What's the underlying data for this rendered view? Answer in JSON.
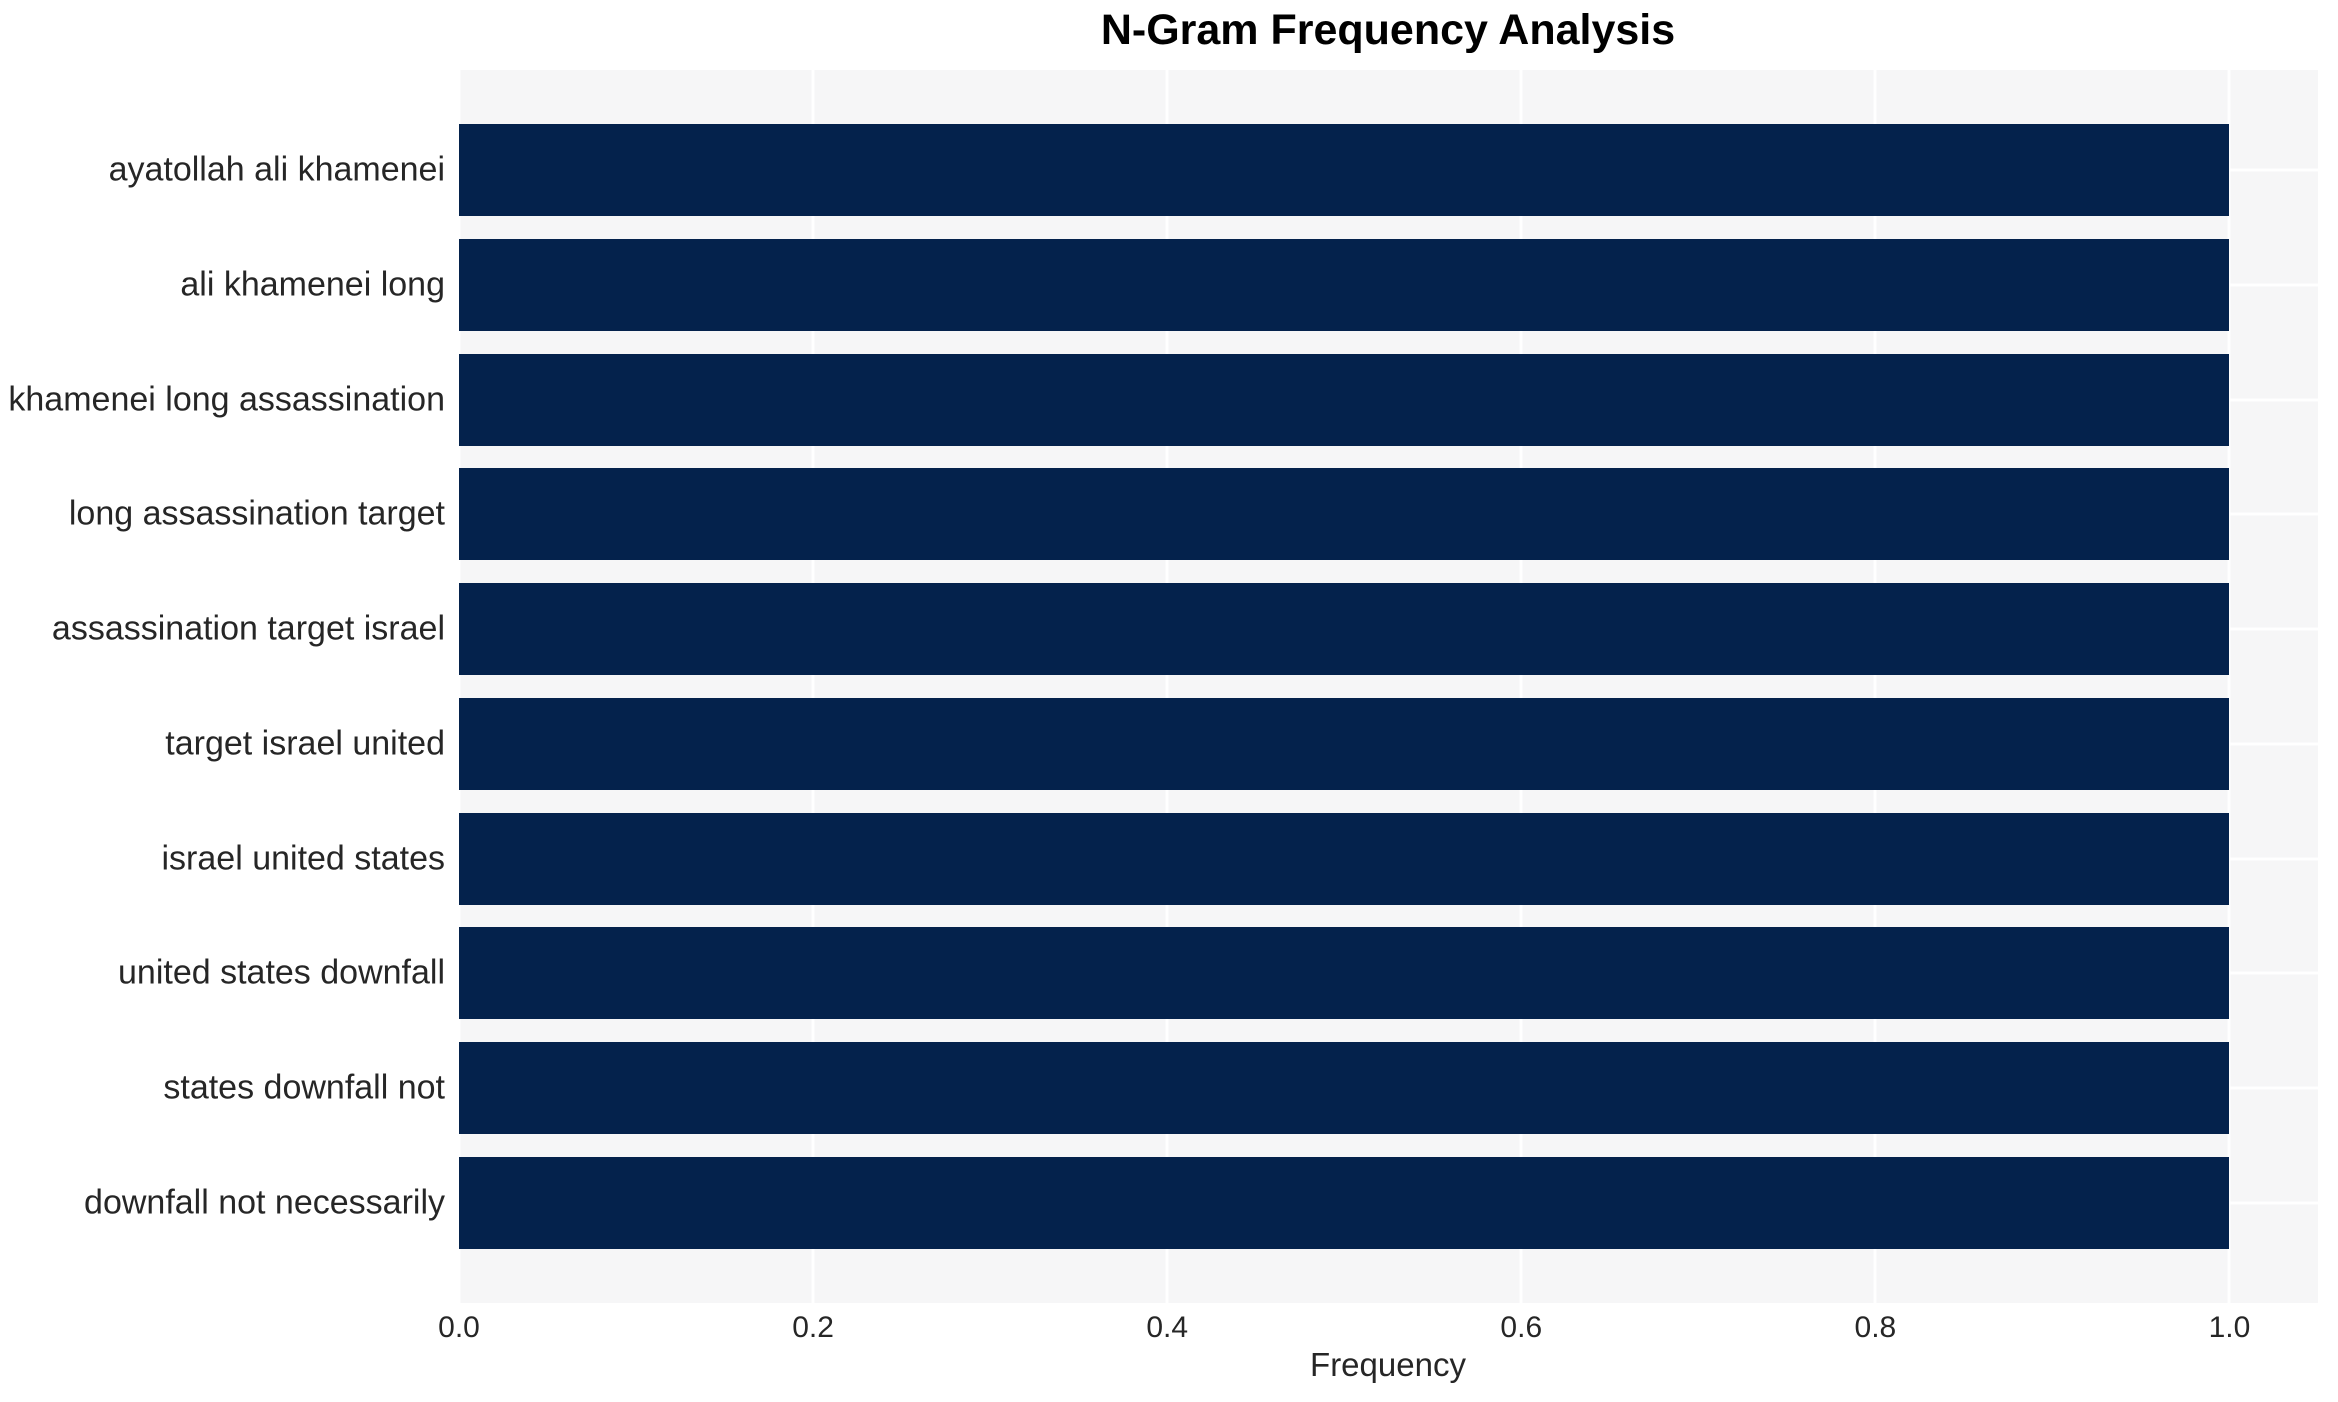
{
  "chart_data": {
    "type": "bar",
    "orientation": "horizontal",
    "title": "N-Gram Frequency Analysis",
    "xlabel": "Frequency",
    "ylabel": "",
    "categories": [
      "ayatollah ali khamenei",
      "ali khamenei long",
      "khamenei long assassination",
      "long assassination target",
      "assassination target israel",
      "target israel united",
      "israel united states",
      "united states downfall",
      "states downfall not",
      "downfall not necessarily"
    ],
    "values": [
      1.0,
      1.0,
      1.0,
      1.0,
      1.0,
      1.0,
      1.0,
      1.0,
      1.0,
      1.0
    ],
    "xlim": [
      0,
      1.05
    ],
    "xticks": [
      0.0,
      0.2,
      0.4,
      0.6,
      0.8,
      1.0
    ],
    "xtick_labels": [
      "0.0",
      "0.2",
      "0.4",
      "0.6",
      "0.8",
      "1.0"
    ],
    "grid": true,
    "legend": "none",
    "colors": {
      "bar": "#04224c",
      "plot_background": "#f6f6f7",
      "gridline": "#ffffff",
      "tick_text": "#262626",
      "title_text": "#000000"
    }
  }
}
